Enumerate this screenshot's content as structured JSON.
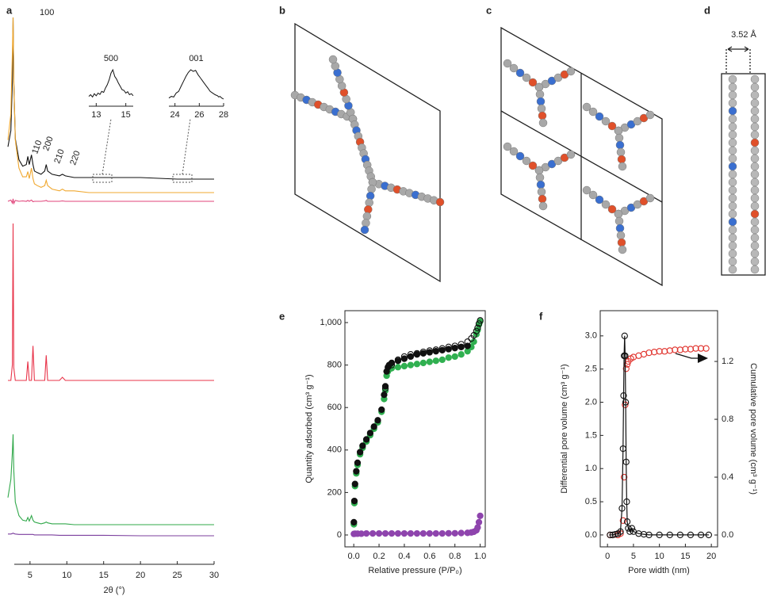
{
  "panel_labels": [
    "a",
    "b",
    "c",
    "d",
    "e",
    "f"
  ],
  "structure_annotation": "3.52 Å",
  "chart_data": [
    {
      "type": "line",
      "xlabel": "2θ (°)",
      "xlim": [
        2,
        30
      ],
      "xticks": [
        5,
        10,
        15,
        20,
        25,
        30
      ],
      "ylim": [
        0,
        100
      ],
      "annotations": [
        "100",
        "110",
        "200",
        "210",
        "220"
      ],
      "x": [
        2,
        2.4,
        2.6,
        2.7,
        2.8,
        3,
        3.5,
        4,
        4.5,
        4.7,
        4.9,
        5.2,
        5.4,
        5.6,
        6,
        6.5,
        7,
        7.2,
        7.4,
        8,
        9,
        9.4,
        9.8,
        11,
        13,
        15,
        20,
        25,
        30
      ],
      "series": [
        {
          "color": "#111111",
          "values": [
            20,
            30,
            60,
            100,
            60,
            25,
            12,
            8,
            9,
            14,
            9,
            15,
            9,
            5,
            4,
            3,
            5,
            9,
            5,
            3,
            2,
            3,
            2,
            1,
            1,
            1,
            1,
            0,
            0
          ]
        },
        {
          "color": "#f0a830",
          "values": [
            30,
            45,
            80,
            100,
            65,
            30,
            14,
            9,
            9,
            12,
            8,
            14,
            8,
            5,
            4,
            3,
            4,
            7,
            4,
            2,
            1,
            2,
            1,
            1,
            0,
            0,
            0,
            0,
            0
          ]
        },
        {
          "color": "#e0457b",
          "values": [
            0,
            3,
            -4,
            6,
            -5,
            2,
            0,
            1,
            0,
            2,
            0,
            3,
            -1,
            0,
            0,
            0,
            1,
            2,
            0,
            0,
            0,
            1,
            0,
            0,
            0,
            0,
            0,
            0,
            0
          ]
        },
        {
          "color": "#e8344a",
          "values": [
            0,
            0,
            10,
            100,
            8,
            0,
            0,
            0,
            0,
            12,
            0,
            0,
            22,
            0,
            0,
            0,
            0,
            16,
            0,
            0,
            0,
            2,
            0,
            0,
            0,
            0,
            0,
            0,
            0
          ]
        },
        {
          "color": "#30a84a",
          "values": [
            30,
            50,
            80,
            100,
            60,
            25,
            10,
            5,
            4,
            8,
            4,
            10,
            5,
            3,
            2,
            1,
            2,
            3,
            2,
            1,
            1,
            1,
            1,
            0,
            0,
            0,
            0,
            0,
            0
          ]
        },
        {
          "color": "#7b3f9e",
          "values": [
            4,
            4,
            5,
            6,
            5,
            4,
            3,
            3,
            3,
            3,
            3,
            3,
            3,
            2,
            2,
            2,
            2,
            2,
            2,
            2,
            1,
            1,
            1,
            1,
            1,
            1,
            0,
            0,
            0
          ]
        }
      ]
    },
    {
      "type": "line",
      "title": "500",
      "xlim": [
        12.5,
        15.5
      ],
      "xticks": [
        13,
        15
      ],
      "ylim": [
        0,
        100
      ],
      "color": "#111111",
      "x": [
        12.5,
        12.625,
        12.75,
        12.875,
        13,
        13.125,
        13.25,
        13.375,
        13.5,
        13.625,
        13.75,
        13.875,
        14,
        14.125,
        14.25,
        14.375,
        14.5,
        14.625,
        14.75,
        14.875,
        15,
        15.125,
        15.25,
        15.375,
        15.5
      ],
      "values": [
        20,
        25,
        18,
        28,
        22,
        30,
        26,
        35,
        32,
        45,
        55,
        70,
        90,
        100,
        80,
        72,
        60,
        50,
        40,
        38,
        30,
        34,
        25,
        28,
        22
      ]
    },
    {
      "type": "line",
      "title": "001",
      "xlim": [
        23.5,
        28
      ],
      "xticks": [
        24,
        26,
        28
      ],
      "ylim": [
        0,
        100
      ],
      "color": "#111111",
      "x": [
        23.5,
        23.7,
        23.9,
        24.1,
        24.3,
        24.5,
        24.7,
        24.9,
        25.1,
        25.3,
        25.5,
        25.7,
        25.9,
        26.1,
        26.3,
        26.5,
        26.7,
        26.9,
        27.1,
        27.3,
        27.5,
        27.6,
        27.7,
        27.85,
        28
      ],
      "values": [
        15,
        20,
        18,
        30,
        35,
        50,
        65,
        80,
        92,
        100,
        95,
        98,
        85,
        75,
        65,
        55,
        45,
        35,
        30,
        25,
        22,
        18,
        20,
        15,
        12
      ]
    },
    {
      "type": "scatter",
      "xlabel": "Relative pressure (P/P₀)",
      "ylabel": "Quantity adsorbed (cm³ g⁻¹)",
      "xlim": [
        -0.07,
        1.04
      ],
      "ylim": [
        -56,
        1056
      ],
      "xticks": [
        {
          "value": 0,
          "label": "0.0"
        },
        0.2,
        0.4,
        0.6,
        0.8,
        {
          "value": 1,
          "label": "1.0"
        }
      ],
      "yticks": [
        0,
        200,
        400,
        600,
        800,
        {
          "value": 1000,
          "label": "1,000"
        }
      ],
      "series": [
        {
          "color": "#30b050",
          "marker": "filled",
          "x": [
            0.001,
            0.005,
            0.01,
            0.02,
            0.03,
            0.05,
            0.07,
            0.1,
            0.13,
            0.16,
            0.19,
            0.22,
            0.24,
            0.25,
            0.26,
            0.27,
            0.28,
            0.3,
            0.35,
            0.4,
            0.45,
            0.5,
            0.55,
            0.6,
            0.65,
            0.7,
            0.75,
            0.8,
            0.85,
            0.9,
            0.93,
            0.95,
            0.97,
            0.98,
            0.99,
            1.0
          ],
          "values": [
            50,
            150,
            230,
            290,
            330,
            380,
            410,
            440,
            470,
            500,
            530,
            580,
            640,
            680,
            750,
            770,
            780,
            785,
            790,
            795,
            800,
            805,
            810,
            815,
            820,
            825,
            835,
            840,
            850,
            865,
            885,
            910,
            945,
            965,
            990,
            1005
          ]
        },
        {
          "color": "#111111",
          "marker": "filled",
          "x": [
            0.001,
            0.005,
            0.01,
            0.02,
            0.03,
            0.05,
            0.07,
            0.1,
            0.13,
            0.16,
            0.19,
            0.22,
            0.24,
            0.25,
            0.26,
            0.27,
            0.28,
            0.3,
            0.35,
            0.4,
            0.45,
            0.5,
            0.55,
            0.6,
            0.65,
            0.7,
            0.75,
            0.8,
            0.85,
            0.9
          ],
          "values": [
            60,
            160,
            240,
            300,
            340,
            390,
            420,
            450,
            480,
            510,
            540,
            590,
            660,
            700,
            770,
            790,
            800,
            810,
            820,
            830,
            840,
            850,
            855,
            860,
            865,
            870,
            875,
            880,
            885,
            890
          ]
        },
        {
          "color": "#111111",
          "marker": "open",
          "x": [
            0.25,
            0.3,
            0.35,
            0.4,
            0.45,
            0.5,
            0.55,
            0.6,
            0.65,
            0.7,
            0.75,
            0.8,
            0.85,
            0.9,
            0.93,
            0.95,
            0.97,
            0.98,
            0.99,
            1.0
          ],
          "values": [
            690,
            800,
            825,
            840,
            850,
            855,
            862,
            868,
            872,
            878,
            885,
            890,
            898,
            910,
            925,
            940,
            960,
            975,
            995,
            1010
          ]
        },
        {
          "color": "#8e44ad",
          "marker": "filled",
          "x": [
            0.001,
            0.01,
            0.03,
            0.06,
            0.1,
            0.15,
            0.2,
            0.25,
            0.3,
            0.35,
            0.4,
            0.45,
            0.5,
            0.55,
            0.6,
            0.65,
            0.7,
            0.75,
            0.8,
            0.85,
            0.9,
            0.93,
            0.95,
            0.97,
            0.98,
            0.99,
            1.0
          ],
          "values": [
            5,
            6,
            6,
            6,
            7,
            7,
            7,
            7,
            7,
            7,
            7,
            7,
            7,
            7,
            7,
            7,
            7,
            8,
            8,
            9,
            10,
            12,
            15,
            22,
            35,
            60,
            90
          ]
        }
      ]
    },
    {
      "type": "scatter",
      "xlabel": "Pore width (nm)",
      "ylabel": "Differential pore volume (cm³ g⁻¹)",
      "y2label": "Cumulative pore volume (cm³ g⁻¹)",
      "xlim": [
        -1.4,
        21.2
      ],
      "ylim": [
        -0.18,
        3.38
      ],
      "y2lim": [
        -0.082,
        1.551
      ],
      "xticks": [
        0,
        5,
        10,
        15,
        20
      ],
      "yticks": [
        {
          "value": 0,
          "label": "0.0"
        },
        0.5,
        {
          "value": 1,
          "label": "1.0"
        },
        1.5,
        {
          "value": 2,
          "label": "2.0"
        },
        2.5,
        {
          "value": 3,
          "label": "3.0"
        }
      ],
      "y2ticks": [
        {
          "value": 0,
          "label": "0.0"
        },
        0.4,
        0.8,
        1.2
      ],
      "series": [
        {
          "color": "#e0302a",
          "marker": "open",
          "axis": "y2",
          "x": [
            0.5,
            1,
            2,
            2.5,
            3,
            3.2,
            3.4,
            3.6,
            3.8,
            4,
            4.5,
            5,
            6,
            7,
            8,
            9,
            10,
            11,
            12,
            13,
            14,
            15,
            16,
            17,
            18,
            19
          ],
          "values": [
            0,
            0,
            0,
            0.01,
            0.1,
            0.4,
            0.9,
            1.15,
            1.18,
            1.2,
            1.22,
            1.23,
            1.24,
            1.25,
            1.26,
            1.265,
            1.27,
            1.27,
            1.275,
            1.28,
            1.28,
            1.285,
            1.285,
            1.29,
            1.29,
            1.29
          ]
        },
        {
          "color": "#111111",
          "marker": "open",
          "line": true,
          "x": [
            0.5,
            1,
            1.5,
            2,
            2.5,
            2.8,
            3,
            3.1,
            3.2,
            3.3,
            3.4,
            3.5,
            3.6,
            3.7,
            3.8,
            4,
            4.3,
            4.7,
            5,
            6,
            7,
            8,
            10,
            12,
            14,
            16,
            18,
            19.5
          ],
          "values": [
            0,
            0,
            0.01,
            0.02,
            0.05,
            0.4,
            1.3,
            2.1,
            2.7,
            3.0,
            2.7,
            2.0,
            1.1,
            0.5,
            0.2,
            0.1,
            0.05,
            0.1,
            0.05,
            0.02,
            0.01,
            0,
            0,
            0,
            0,
            0,
            0,
            0
          ]
        }
      ]
    }
  ]
}
